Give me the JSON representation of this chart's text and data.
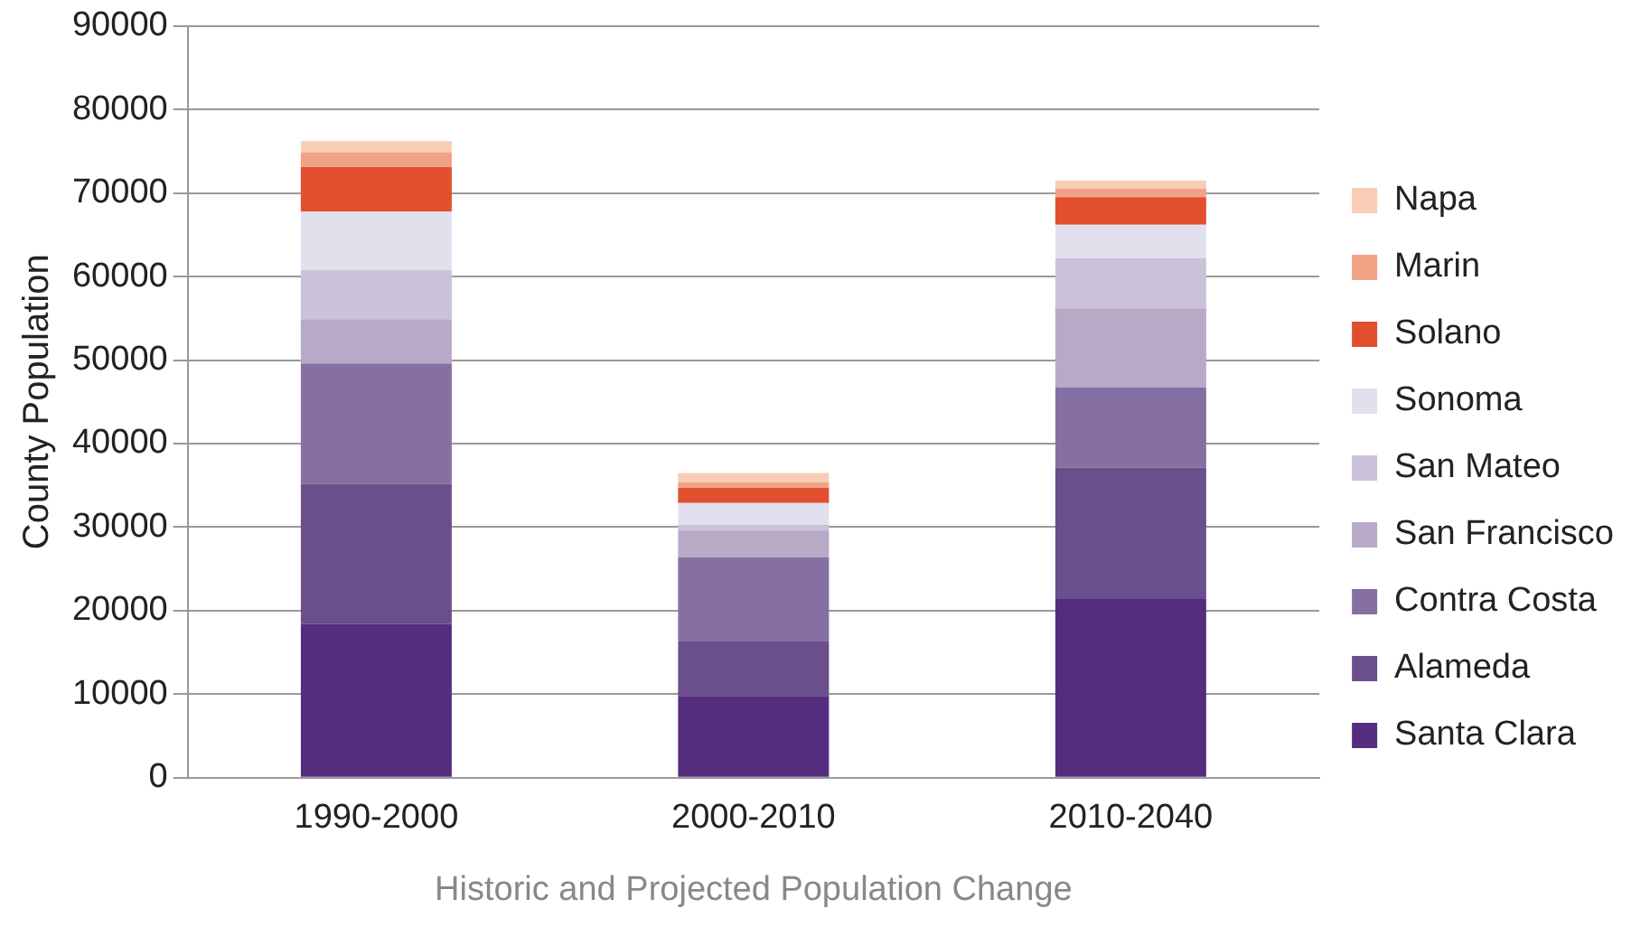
{
  "chart_data": {
    "type": "bar",
    "stacked": true,
    "xlabel": "Historic and Projected Population Change",
    "ylabel": "County Population",
    "categories": [
      "1990-2000",
      "2000-2010",
      "2010-2040"
    ],
    "series": [
      {
        "name": "Santa Clara",
        "color": "#552d7f",
        "values": [
          18400,
          9800,
          21400
        ]
      },
      {
        "name": "Alameda",
        "color": "#6b4e8c",
        "values": [
          16800,
          6600,
          15700
        ]
      },
      {
        "name": "Contra Costa",
        "color": "#8670a3",
        "values": [
          14400,
          10000,
          9600
        ]
      },
      {
        "name": "San Francisco",
        "color": "#b8a9c6",
        "values": [
          5300,
          3200,
          9500
        ]
      },
      {
        "name": "San Mateo",
        "color": "#cbc1d8",
        "values": [
          5900,
          700,
          6000
        ]
      },
      {
        "name": "Sonoma",
        "color": "#e3e0ee",
        "values": [
          7000,
          2600,
          4000
        ]
      },
      {
        "name": "Solano",
        "color": "#e24f2f",
        "values": [
          5300,
          1800,
          3300
        ]
      },
      {
        "name": "Marin",
        "color": "#f0a284",
        "values": [
          1800,
          700,
          1000
        ]
      },
      {
        "name": "Napa",
        "color": "#f9cdb5",
        "values": [
          1300,
          1100,
          1000
        ]
      }
    ],
    "ylim": [
      0,
      90000
    ],
    "yticks": [
      0,
      10000,
      20000,
      30000,
      40000,
      50000,
      60000,
      70000,
      80000,
      90000
    ],
    "grid": "y",
    "legend": "right"
  }
}
